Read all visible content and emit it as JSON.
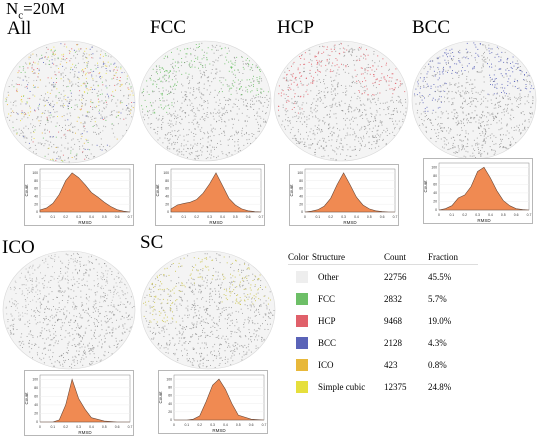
{
  "title": {
    "prefix": "N",
    "subscript": "c",
    "suffix": "=20M"
  },
  "panels": [
    {
      "label": "All",
      "tint": "mixed"
    },
    {
      "label": "FCC",
      "tint": "#6dbf67"
    },
    {
      "label": "HCP",
      "tint": "#e0606a"
    },
    {
      "label": "BCC",
      "tint": "#5a63b8"
    },
    {
      "label": "ICO",
      "tint": "#b8b8b8"
    },
    {
      "label": "SC",
      "tint": "#c9c24a"
    }
  ],
  "histogram_axes": {
    "xlabel": "RMSD",
    "ylabel": "Count"
  },
  "legend_table": {
    "headers": [
      "Color",
      "Structure",
      "Count",
      "Fraction"
    ],
    "rows": [
      {
        "color": "#eeeeee",
        "structure": "Other",
        "count": "22756",
        "fraction": "45.5%"
      },
      {
        "color": "#6dbf67",
        "structure": "FCC",
        "count": "2832",
        "fraction": "5.7%"
      },
      {
        "color": "#e0606a",
        "structure": "HCP",
        "count": "9468",
        "fraction": "19.0%"
      },
      {
        "color": "#5a63b8",
        "structure": "BCC",
        "count": "2128",
        "fraction": "4.3%"
      },
      {
        "color": "#e8b83a",
        "structure": "ICO",
        "count": "423",
        "fraction": "0.8%"
      },
      {
        "color": "#e6df3c",
        "structure": "Simple cubic",
        "count": "12375",
        "fraction": "24.8%"
      }
    ]
  },
  "chart_data": [
    {
      "type": "area",
      "panel": "All",
      "xlabel": "RMSD",
      "ylabel": "Count",
      "x": [
        0,
        0.05,
        0.1,
        0.15,
        0.2,
        0.25,
        0.3,
        0.35,
        0.4,
        0.45,
        0.5,
        0.55,
        0.6,
        0.65,
        0.7
      ],
      "values": [
        5,
        10,
        22,
        45,
        80,
        100,
        88,
        70,
        50,
        38,
        25,
        14,
        6,
        2,
        0
      ]
    },
    {
      "type": "area",
      "panel": "FCC",
      "xlabel": "RMSD",
      "ylabel": "Count",
      "x": [
        0,
        0.05,
        0.1,
        0.15,
        0.2,
        0.25,
        0.3,
        0.35,
        0.4,
        0.45,
        0.5,
        0.55,
        0.6,
        0.65,
        0.7
      ],
      "values": [
        8,
        18,
        22,
        25,
        32,
        48,
        72,
        100,
        68,
        35,
        18,
        8,
        3,
        1,
        0
      ]
    },
    {
      "type": "area",
      "panel": "HCP",
      "xlabel": "RMSD",
      "ylabel": "Count",
      "x": [
        0,
        0.05,
        0.1,
        0.15,
        0.2,
        0.25,
        0.3,
        0.35,
        0.4,
        0.45,
        0.5,
        0.55,
        0.6,
        0.65,
        0.7
      ],
      "values": [
        0,
        2,
        6,
        15,
        35,
        70,
        100,
        70,
        38,
        18,
        8,
        3,
        1,
        0,
        0
      ]
    },
    {
      "type": "area",
      "panel": "BCC",
      "xlabel": "RMSD",
      "ylabel": "Count",
      "x": [
        0,
        0.05,
        0.1,
        0.15,
        0.2,
        0.25,
        0.3,
        0.35,
        0.4,
        0.45,
        0.5,
        0.55,
        0.6,
        0.65,
        0.7
      ],
      "values": [
        0,
        3,
        10,
        28,
        35,
        55,
        90,
        100,
        75,
        45,
        22,
        10,
        3,
        1,
        0
      ]
    },
    {
      "type": "area",
      "panel": "ICO",
      "xlabel": "RMSD",
      "ylabel": "Count",
      "x": [
        0,
        0.1,
        0.15,
        0.2,
        0.25,
        0.3,
        0.35,
        0.4,
        0.5,
        0.6,
        0.7
      ],
      "values": [
        0,
        0,
        5,
        40,
        100,
        55,
        30,
        10,
        2,
        0,
        0
      ]
    },
    {
      "type": "area",
      "panel": "SC",
      "xlabel": "RMSD",
      "ylabel": "Count",
      "x": [
        0,
        0.1,
        0.15,
        0.2,
        0.25,
        0.3,
        0.35,
        0.4,
        0.45,
        0.5,
        0.6,
        0.7
      ],
      "values": [
        0,
        0,
        2,
        10,
        45,
        85,
        100,
        75,
        40,
        12,
        2,
        0
      ]
    }
  ]
}
